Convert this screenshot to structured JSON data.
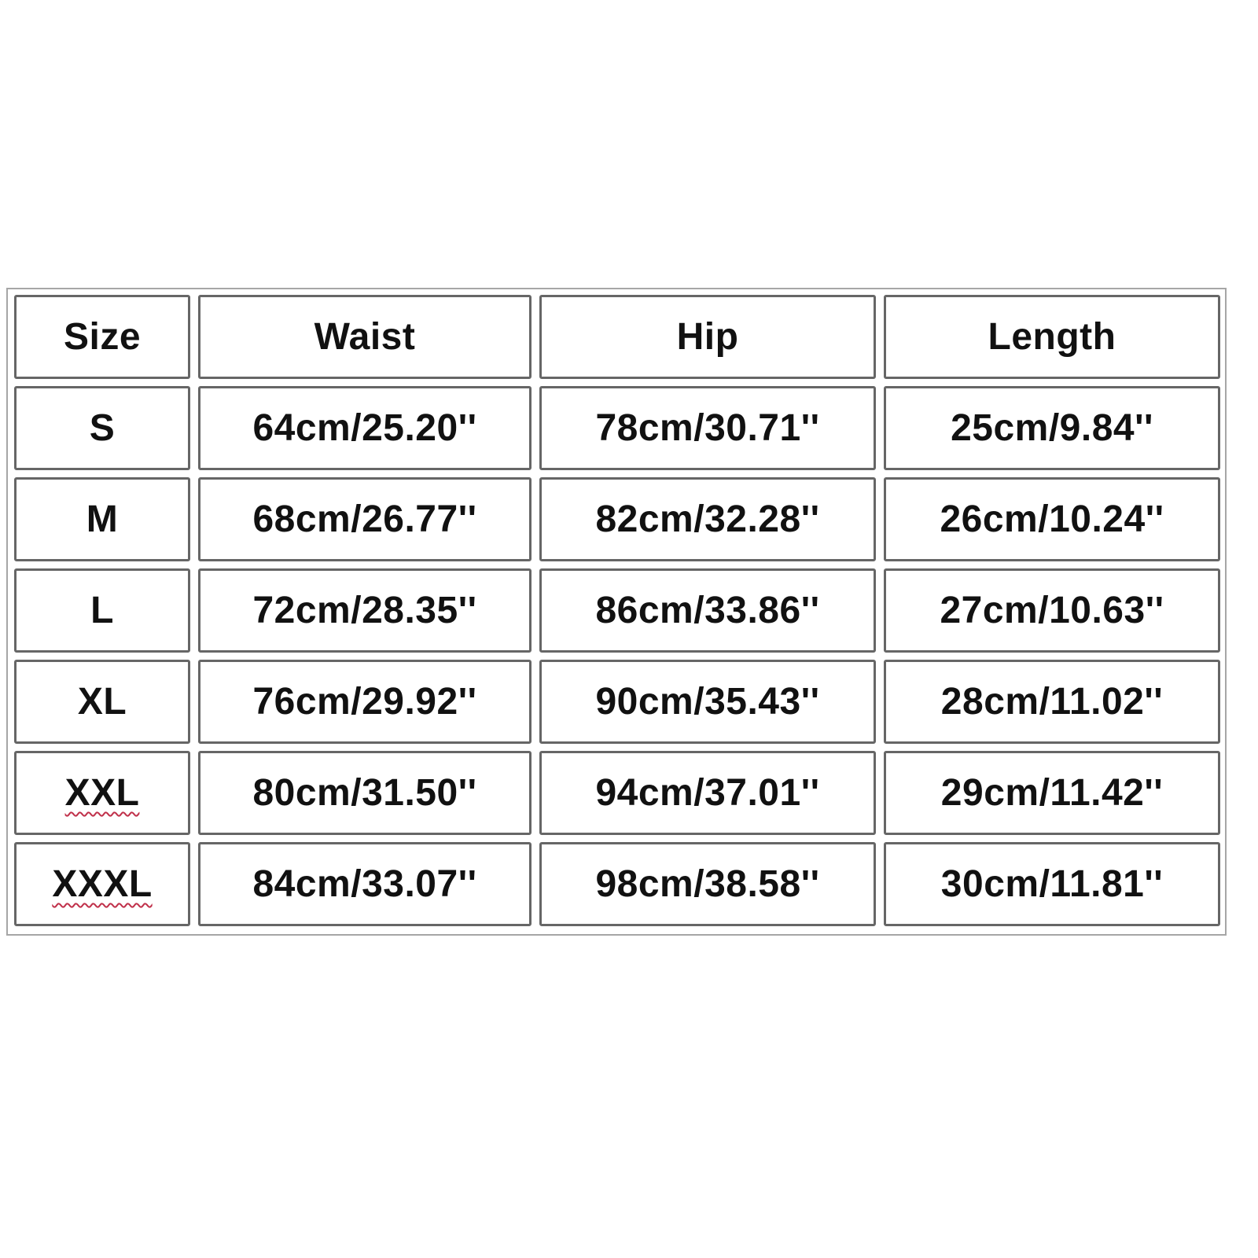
{
  "table": {
    "headers": [
      "Size",
      "Waist",
      "Hip",
      "Length"
    ],
    "rows": [
      [
        "S",
        "64cm/25.20''",
        "78cm/30.71''",
        "25cm/9.84''"
      ],
      [
        "M",
        "68cm/26.77''",
        "82cm/32.28''",
        "26cm/10.24''"
      ],
      [
        "L",
        "72cm/28.35''",
        "86cm/33.86''",
        "27cm/10.63''"
      ],
      [
        "XL",
        "76cm/29.92''",
        "90cm/35.43''",
        "28cm/11.02''"
      ],
      [
        "XXL",
        "80cm/31.50''",
        "94cm/37.01''",
        "29cm/11.42''"
      ],
      [
        "XXXL",
        "84cm/33.07''",
        "98cm/38.58''",
        "30cm/11.81''"
      ]
    ],
    "spellcheck_flagged": [
      "XXL",
      "XXXL"
    ]
  },
  "colors": {
    "cell_border": "#666666",
    "outer_border": "#a6a6a6",
    "spellcheck_underline": "#c0304a"
  }
}
